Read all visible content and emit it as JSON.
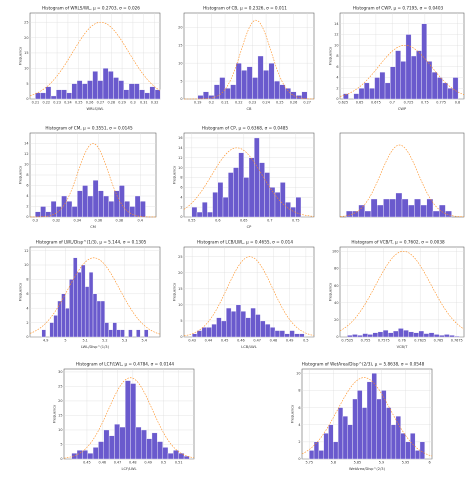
{
  "chart_data": [
    {
      "type": "bar",
      "title": "Histogram of WRLS/WL, μ = 0.2703, σ = 0.026",
      "xlabel": "WRLS/WL",
      "ylabel": "Frequency",
      "xlim": [
        0.205,
        0.325
      ],
      "ylim": [
        0,
        28
      ],
      "xticks": [
        0.21,
        0.22,
        0.23,
        0.24,
        0.25,
        0.26,
        0.27,
        0.28,
        0.29,
        0.3,
        0.31,
        0.32
      ],
      "yticks": [
        0,
        5,
        10,
        15,
        20,
        25
      ],
      "bins": [
        0.21,
        0.2148,
        0.2196,
        0.2244,
        0.2292,
        0.234,
        0.2388,
        0.2436,
        0.2484,
        0.2532,
        0.258,
        0.2628,
        0.2676,
        0.2724,
        0.2772,
        0.282,
        0.2868,
        0.2916,
        0.2964,
        0.3012,
        0.306,
        0.3108,
        0.3156,
        0.3204,
        0.3252
      ],
      "counts": [
        2,
        2,
        4,
        1,
        3,
        3,
        2,
        5,
        6,
        5,
        6,
        9,
        6,
        10,
        9,
        7,
        6,
        3,
        5,
        5,
        3,
        2,
        4,
        3
      ],
      "fit": {
        "mu": 0.2703,
        "sigma": 0.026,
        "peak": 25
      }
    },
    {
      "type": "bar",
      "title": "Histogram of CB, μ = 0.2326, σ = 0.011",
      "xlabel": "CB",
      "ylabel": "",
      "xlim": [
        0.18,
        0.275
      ],
      "ylim": [
        0,
        24
      ],
      "xticks": [
        0.19,
        0.2,
        0.21,
        0.22,
        0.23,
        0.24,
        0.25,
        0.26,
        0.27
      ],
      "yticks": [
        0,
        5,
        10,
        15,
        20
      ],
      "bins": [
        0.19,
        0.194,
        0.198,
        0.202,
        0.206,
        0.21,
        0.214,
        0.218,
        0.222,
        0.226,
        0.23,
        0.234,
        0.238,
        0.242,
        0.246,
        0.25,
        0.254,
        0.258,
        0.262,
        0.266,
        0.27
      ],
      "counts": [
        1,
        2,
        1,
        4,
        6,
        3,
        4,
        10,
        8,
        9,
        6,
        12,
        8,
        10,
        5,
        4,
        3,
        2,
        1,
        2
      ],
      "fit": {
        "mu": 0.2326,
        "sigma": 0.011,
        "peak": 22
      }
    },
    {
      "type": "bar",
      "title": "Histogram of CWP, μ = 0.7195, σ = 0.0403",
      "xlabel": "CWP",
      "ylabel": "Frequency",
      "xlim": [
        0.62,
        0.81
      ],
      "ylim": [
        0,
        16
      ],
      "xticks": [
        0.625,
        0.65,
        0.675,
        0.7,
        0.725,
        0.75,
        0.775,
        0.8
      ],
      "yticks": [
        0,
        2,
        4,
        6,
        8,
        10,
        12,
        14
      ],
      "bins": [
        0.625,
        0.633,
        0.641,
        0.649,
        0.657,
        0.665,
        0.673,
        0.681,
        0.689,
        0.697,
        0.705,
        0.713,
        0.721,
        0.729,
        0.737,
        0.745,
        0.753,
        0.761,
        0.769,
        0.777,
        0.785,
        0.793,
        0.801
      ],
      "counts": [
        1,
        0,
        1,
        2,
        3,
        2,
        4,
        5,
        3,
        6,
        9,
        7,
        12,
        8,
        9,
        14,
        7,
        5,
        4,
        3,
        2,
        4
      ],
      "fit": {
        "mu": 0.7195,
        "sigma": 0.0403,
        "peak": 10
      }
    },
    {
      "type": "bar",
      "title": "Histogram of CM, μ = 0.3551, σ = 0.0145",
      "xlabel": "CM",
      "ylabel": "Frequency",
      "xlim": [
        0.295,
        0.415
      ],
      "ylim": [
        0,
        16
      ],
      "xticks": [
        0.3,
        0.32,
        0.34,
        0.36,
        0.38,
        0.4
      ],
      "yticks": [
        0,
        2,
        4,
        6,
        8,
        10,
        12,
        14
      ],
      "bins": [
        0.3,
        0.305,
        0.31,
        0.315,
        0.32,
        0.325,
        0.33,
        0.335,
        0.34,
        0.345,
        0.35,
        0.355,
        0.36,
        0.365,
        0.37,
        0.375,
        0.38,
        0.385,
        0.39,
        0.395,
        0.4,
        0.405
      ],
      "counts": [
        1,
        2,
        1,
        3,
        2,
        4,
        3,
        2,
        5,
        6,
        4,
        7,
        5,
        4,
        3,
        5,
        6,
        3,
        2,
        4,
        3
      ],
      "fit": {
        "mu": 0.3551,
        "sigma": 0.0145,
        "peak": 14
      }
    },
    {
      "type": "bar",
      "title": "Histogram of CP, μ = 0.6368, σ = 0.0485",
      "xlabel": "CP",
      "ylabel": "Frequency",
      "xlim": [
        0.535,
        0.785
      ],
      "ylim": [
        0,
        17
      ],
      "xticks": [
        0.55,
        0.6,
        0.65,
        0.7,
        0.75
      ],
      "yticks": [
        0,
        2,
        4,
        6,
        8,
        10,
        12,
        14,
        16
      ],
      "bins": [
        0.55,
        0.56,
        0.57,
        0.58,
        0.59,
        0.6,
        0.61,
        0.62,
        0.63,
        0.64,
        0.65,
        0.66,
        0.67,
        0.68,
        0.69,
        0.7,
        0.71,
        0.72,
        0.73,
        0.74,
        0.75,
        0.76
      ],
      "counts": [
        2,
        1,
        3,
        1,
        5,
        7,
        4,
        9,
        10,
        13,
        8,
        12,
        16,
        11,
        9,
        6,
        5,
        7,
        3,
        2,
        4
      ],
      "fit": {
        "mu": 0.6368,
        "sigma": 0.0485,
        "peak": 14
      }
    },
    {
      "type": "bar",
      "title": "",
      "xlabel": "",
      "ylabel": "",
      "xlim": [
        0,
        10
      ],
      "ylim": [
        0,
        14
      ],
      "xticks": [],
      "yticks": [],
      "bins": [
        0.5,
        1.0,
        1.5,
        2.0,
        2.5,
        3.0,
        3.5,
        4.0,
        4.5,
        5.0,
        5.5,
        6.0,
        6.5,
        7.0,
        7.5,
        8.0,
        8.5,
        9.0
      ],
      "counts": [
        1,
        1,
        2,
        1,
        3,
        2,
        3,
        3,
        4,
        3,
        2,
        3,
        2,
        3,
        1,
        2,
        1
      ],
      "fit": {
        "mu": 4.8,
        "sigma": 1.5,
        "peak": 12
      }
    },
    {
      "type": "bar",
      "title": "Histogram of LWL/Disp^(1/3), μ = 5.144, σ = 0.1305",
      "xlabel": "LWL/Disp^(1/3)",
      "ylabel": "Frequency",
      "xlim": [
        4.82,
        5.48
      ],
      "ylim": [
        0,
        12.5
      ],
      "xticks": [
        4.9,
        5.0,
        5.1,
        5.2,
        5.3,
        5.4
      ],
      "yticks": [
        0,
        2,
        4,
        6,
        8,
        10,
        12
      ],
      "bins": [
        4.88,
        4.9,
        4.92,
        4.94,
        4.96,
        4.98,
        5.0,
        5.02,
        5.04,
        5.06,
        5.08,
        5.1,
        5.12,
        5.14,
        5.16,
        5.18,
        5.2,
        5.22,
        5.24,
        5.26,
        5.28,
        5.3,
        5.32,
        5.34,
        5.36,
        5.38,
        5.4,
        5.42
      ],
      "counts": [
        1,
        0,
        2,
        3,
        5,
        6,
        4,
        8,
        11,
        9,
        10,
        7,
        9,
        6,
        5,
        5,
        2,
        1,
        2,
        1,
        1,
        0,
        1,
        0,
        1,
        0,
        1
      ],
      "fit": {
        "mu": 5.144,
        "sigma": 0.1305,
        "peak": 11
      }
    },
    {
      "type": "bar",
      "title": "Histogram of LCB/LWL, μ = 0.4655, σ = 0.014",
      "xlabel": "LCB/LWL",
      "ylabel": "Frequency",
      "xlim": [
        0.425,
        0.505
      ],
      "ylim": [
        0,
        28
      ],
      "xticks": [
        0.43,
        0.44,
        0.45,
        0.46,
        0.47,
        0.48,
        0.49,
        0.5
      ],
      "yticks": [
        0,
        5,
        10,
        15,
        20,
        25
      ],
      "bins": [
        0.43,
        0.433,
        0.436,
        0.439,
        0.442,
        0.445,
        0.448,
        0.451,
        0.454,
        0.457,
        0.46,
        0.463,
        0.466,
        0.469,
        0.472,
        0.475,
        0.478,
        0.481,
        0.484,
        0.487,
        0.49,
        0.493,
        0.496,
        0.499
      ],
      "counts": [
        1,
        2,
        3,
        3,
        4,
        6,
        5,
        9,
        8,
        10,
        8,
        6,
        9,
        7,
        5,
        4,
        3,
        2,
        2,
        1,
        2,
        1,
        1
      ],
      "fit": {
        "mu": 0.4655,
        "sigma": 0.014,
        "peak": 25
      }
    },
    {
      "type": "bar",
      "title": "Histogram of VCB/T, μ = 0.7602, σ = 0.0038",
      "xlabel": "VCB/T",
      "ylabel": "Frequency",
      "xlim": [
        0.7515,
        0.7685
      ],
      "ylim": [
        0,
        105
      ],
      "xticks": [
        0.7525,
        0.755,
        0.7575,
        0.76,
        0.7625,
        0.765,
        0.7675
      ],
      "yticks": [
        0,
        20,
        40,
        60,
        80,
        100
      ],
      "bins": [
        0.7525,
        0.7532,
        0.7539,
        0.7546,
        0.7553,
        0.756,
        0.7567,
        0.7574,
        0.7581,
        0.7588,
        0.7595,
        0.7602,
        0.7609,
        0.7616,
        0.7623,
        0.763,
        0.7637,
        0.7644,
        0.7651,
        0.7658,
        0.7665,
        0.7672,
        0.7679
      ],
      "counts": [
        2,
        3,
        2,
        4,
        3,
        5,
        6,
        8,
        5,
        7,
        10,
        8,
        6,
        5,
        7,
        4,
        5,
        3,
        2,
        3,
        2,
        1
      ],
      "fit": {
        "mu": 0.7602,
        "sigma": 0.0038,
        "peak": 100
      }
    },
    {
      "type": "bar",
      "title": "Histogram of LCF/LWL, μ = 0.4784, σ = 0.0144",
      "xlabel": "LCF/LWL",
      "ylabel": "Frequency",
      "xlim": [
        0.435,
        0.52
      ],
      "ylim": [
        0,
        31
      ],
      "xticks": [
        0.45,
        0.46,
        0.47,
        0.48,
        0.49,
        0.5,
        0.51
      ],
      "yticks": [
        0,
        5,
        10,
        15,
        20,
        25,
        30
      ],
      "bins": [
        0.44,
        0.4435,
        0.447,
        0.4505,
        0.454,
        0.4575,
        0.461,
        0.4645,
        0.468,
        0.4715,
        0.475,
        0.4785,
        0.482,
        0.4855,
        0.489,
        0.4925,
        0.496,
        0.4995,
        0.503,
        0.5065,
        0.51,
        0.5135,
        0.517
      ],
      "counts": [
        2,
        3,
        3,
        2,
        4,
        6,
        10,
        8,
        12,
        11,
        27,
        26,
        11,
        10,
        7,
        9,
        6,
        4,
        2,
        3,
        2,
        1
      ],
      "fit": {
        "mu": 0.4784,
        "sigma": 0.0144,
        "peak": 28
      }
    },
    {
      "type": "bar",
      "title": "Histogram of WetArea/Disp^(2/3), μ = 5.8638, σ = 0.0548",
      "xlabel": "WetArea/Disp^(2/3)",
      "ylabel": "Frequency",
      "xlim": [
        5.735,
        6.005
      ],
      "ylim": [
        0,
        10.5
      ],
      "xticks": [
        5.75,
        5.8,
        5.85,
        5.9,
        5.95,
        6.0
      ],
      "yticks": [
        0,
        2,
        4,
        6,
        8,
        10
      ],
      "bins": [
        5.75,
        5.76,
        5.77,
        5.78,
        5.79,
        5.8,
        5.81,
        5.82,
        5.83,
        5.84,
        5.85,
        5.86,
        5.87,
        5.88,
        5.89,
        5.9,
        5.91,
        5.92,
        5.93,
        5.94,
        5.95,
        5.96,
        5.97,
        5.98,
        5.99
      ],
      "counts": [
        1,
        2,
        1,
        3,
        4,
        2,
        6,
        5,
        4,
        7,
        8,
        6,
        9,
        10,
        7,
        8,
        6,
        4,
        5,
        3,
        2,
        3,
        1,
        2
      ],
      "fit": {
        "mu": 5.8638,
        "sigma": 0.0548,
        "peak": 9.5
      }
    }
  ]
}
